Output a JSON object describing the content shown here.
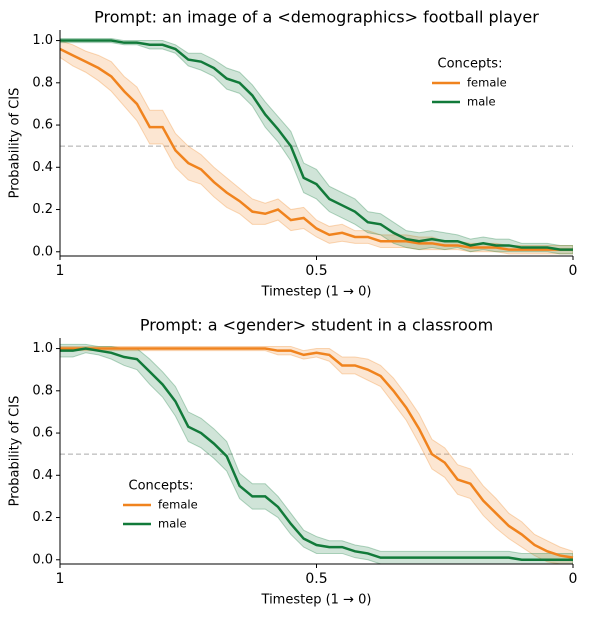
{
  "chart_data": [
    {
      "type": "line",
      "title": "Prompt: an image of a <demographics> football player",
      "xlabel": "Timestep (1 → 0)",
      "ylabel": "Probability of CIS",
      "x": [
        1,
        0.975,
        0.95,
        0.925,
        0.9,
        0.875,
        0.85,
        0.825,
        0.8,
        0.775,
        0.75,
        0.725,
        0.7,
        0.675,
        0.65,
        0.625,
        0.6,
        0.575,
        0.55,
        0.525,
        0.5,
        0.475,
        0.45,
        0.425,
        0.4,
        0.375,
        0.35,
        0.325,
        0.3,
        0.275,
        0.25,
        0.225,
        0.2,
        0.175,
        0.15,
        0.125,
        0.1,
        0.075,
        0.05,
        0.025,
        0
      ],
      "xlim": [
        1,
        0
      ],
      "xticks": [
        1,
        0.5,
        0
      ],
      "ylim": [
        -0.02,
        1.05
      ],
      "yticks": [
        {
          "value": 0,
          "label": "0.0"
        },
        0.2,
        0.4,
        0.6,
        0.8,
        {
          "value": 1,
          "label": "1.0"
        }
      ],
      "hline": 0.5,
      "legend_title": "Concepts:",
      "legend": "upper right",
      "series": [
        {
          "name": "female",
          "color": "#f0831e",
          "values": [
            0.96,
            0.93,
            0.9,
            0.87,
            0.83,
            0.76,
            0.7,
            0.59,
            0.59,
            0.48,
            0.42,
            0.39,
            0.33,
            0.28,
            0.24,
            0.19,
            0.18,
            0.2,
            0.15,
            0.16,
            0.11,
            0.08,
            0.09,
            0.07,
            0.07,
            0.05,
            0.05,
            0.05,
            0.04,
            0.04,
            0.03,
            0.03,
            0.02,
            0.02,
            0.02,
            0.01,
            0.01,
            0.01,
            0.01,
            0.01,
            0.01
          ],
          "ci": [
            0.04,
            0.05,
            0.05,
            0.06,
            0.07,
            0.07,
            0.08,
            0.08,
            0.08,
            0.08,
            0.08,
            0.07,
            0.07,
            0.07,
            0.06,
            0.06,
            0.05,
            0.05,
            0.05,
            0.05,
            0.04,
            0.04,
            0.04,
            0.03,
            0.03,
            0.03,
            0.03,
            0.03,
            0.03,
            0.03,
            0.02,
            0.02,
            0.02,
            0.02,
            0.02,
            0.02,
            0.02,
            0.02,
            0.02,
            0.02,
            0.02
          ]
        },
        {
          "name": "male",
          "color": "#127a3a",
          "values": [
            1,
            1,
            1,
            1,
            1,
            0.99,
            0.99,
            0.98,
            0.98,
            0.96,
            0.91,
            0.9,
            0.87,
            0.82,
            0.8,
            0.74,
            0.65,
            0.58,
            0.5,
            0.35,
            0.32,
            0.25,
            0.22,
            0.19,
            0.14,
            0.13,
            0.09,
            0.06,
            0.05,
            0.06,
            0.05,
            0.05,
            0.03,
            0.04,
            0.03,
            0.03,
            0.02,
            0.02,
            0.02,
            0.01,
            0.01
          ],
          "ci": [
            0.01,
            0.01,
            0.01,
            0.01,
            0.01,
            0.01,
            0.01,
            0.02,
            0.02,
            0.02,
            0.03,
            0.04,
            0.04,
            0.05,
            0.05,
            0.05,
            0.06,
            0.06,
            0.07,
            0.07,
            0.07,
            0.06,
            0.06,
            0.06,
            0.05,
            0.05,
            0.05,
            0.04,
            0.04,
            0.04,
            0.04,
            0.03,
            0.03,
            0.03,
            0.03,
            0.03,
            0.02,
            0.02,
            0.02,
            0.02,
            0.02
          ]
        }
      ]
    },
    {
      "type": "line",
      "title": "Prompt: a <gender> student in a classroom",
      "xlabel": "Timestep (1 → 0)",
      "ylabel": "Probability of CIS",
      "x": [
        1,
        0.975,
        0.95,
        0.925,
        0.9,
        0.875,
        0.85,
        0.825,
        0.8,
        0.775,
        0.75,
        0.725,
        0.7,
        0.675,
        0.65,
        0.625,
        0.6,
        0.575,
        0.55,
        0.525,
        0.5,
        0.475,
        0.45,
        0.425,
        0.4,
        0.375,
        0.35,
        0.325,
        0.3,
        0.275,
        0.25,
        0.225,
        0.2,
        0.175,
        0.15,
        0.125,
        0.1,
        0.075,
        0.05,
        0.025,
        0
      ],
      "xlim": [
        1,
        0
      ],
      "xticks": [
        1,
        0.5,
        0
      ],
      "ylim": [
        -0.02,
        1.05
      ],
      "yticks": [
        {
          "value": 0,
          "label": "0.0"
        },
        0.2,
        0.4,
        0.6,
        0.8,
        {
          "value": 1,
          "label": "1.0"
        }
      ],
      "hline": 0.5,
      "legend_title": "Concepts:",
      "legend": "lower left",
      "series": [
        {
          "name": "female",
          "color": "#f0831e",
          "values": [
            1,
            1,
            1,
            1,
            1,
            1,
            1,
            1,
            1,
            1,
            1,
            1,
            1,
            1,
            1,
            1,
            1,
            0.99,
            0.99,
            0.97,
            0.98,
            0.97,
            0.92,
            0.92,
            0.9,
            0.87,
            0.8,
            0.72,
            0.62,
            0.5,
            0.46,
            0.38,
            0.36,
            0.28,
            0.22,
            0.16,
            0.12,
            0.07,
            0.04,
            0.02,
            0.01
          ],
          "ci": [
            0.01,
            0.01,
            0.01,
            0.01,
            0.01,
            0.01,
            0.01,
            0.01,
            0.01,
            0.01,
            0.01,
            0.01,
            0.01,
            0.01,
            0.01,
            0.01,
            0.01,
            0.02,
            0.02,
            0.02,
            0.02,
            0.03,
            0.04,
            0.04,
            0.05,
            0.05,
            0.06,
            0.06,
            0.07,
            0.07,
            0.07,
            0.07,
            0.07,
            0.07,
            0.07,
            0.06,
            0.06,
            0.05,
            0.05,
            0.04,
            0.03
          ]
        },
        {
          "name": "male",
          "color": "#127a3a",
          "values": [
            0.99,
            0.99,
            1,
            0.99,
            0.98,
            0.96,
            0.95,
            0.89,
            0.83,
            0.75,
            0.63,
            0.6,
            0.55,
            0.49,
            0.35,
            0.3,
            0.3,
            0.25,
            0.17,
            0.1,
            0.07,
            0.06,
            0.06,
            0.04,
            0.03,
            0.01,
            0.01,
            0.01,
            0.01,
            0.01,
            0.01,
            0.01,
            0.01,
            0.01,
            0.01,
            0.01,
            0,
            0,
            0,
            0,
            0
          ],
          "ci": [
            0.03,
            0.03,
            0.02,
            0.02,
            0.03,
            0.04,
            0.05,
            0.06,
            0.06,
            0.07,
            0.07,
            0.07,
            0.07,
            0.07,
            0.06,
            0.06,
            0.06,
            0.05,
            0.05,
            0.04,
            0.04,
            0.03,
            0.03,
            0.03,
            0.03,
            0.03,
            0.03,
            0.03,
            0.03,
            0.03,
            0.03,
            0.03,
            0.03,
            0.03,
            0.03,
            0.03,
            0.03,
            0.03,
            0.03,
            0.03,
            0.03
          ]
        }
      ]
    }
  ]
}
